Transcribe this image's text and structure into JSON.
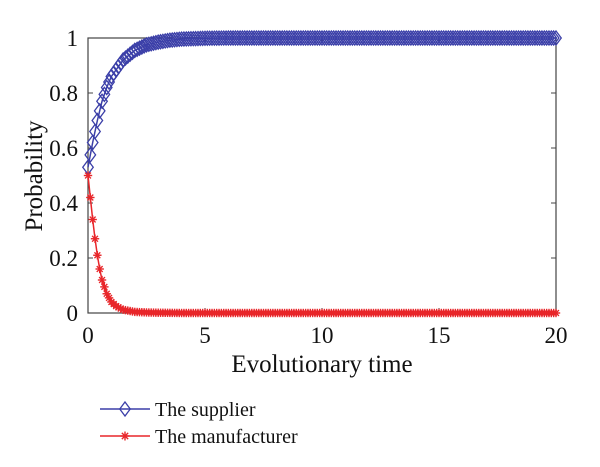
{
  "chart_data": {
    "type": "line",
    "title": "",
    "xlabel": "Evolutionary time",
    "ylabel": "Probability",
    "xlim": [
      0,
      20
    ],
    "ylim": [
      0,
      1
    ],
    "xticks": [
      0,
      5,
      10,
      15,
      20
    ],
    "xtick_labels": [
      "0",
      "5",
      "10",
      "15",
      "20"
    ],
    "yticks": [
      0,
      0.2,
      0.4,
      0.6,
      0.8,
      1
    ],
    "ytick_labels": [
      "0",
      "0.2",
      "0.4",
      "0.6",
      "0.8",
      "1"
    ],
    "grid": false,
    "legend_position": "bottom-left",
    "series": [
      {
        "name": "The supplier",
        "color": "#3b3fa8",
        "marker": "diamond",
        "x": [
          0,
          0.2,
          0.4,
          0.6,
          0.8,
          1,
          1.5,
          2,
          2.5,
          3,
          3.5,
          4,
          5,
          6,
          8,
          10,
          12,
          14,
          16,
          18,
          20
        ],
        "y": [
          0.53,
          0.62,
          0.7,
          0.77,
          0.82,
          0.86,
          0.92,
          0.955,
          0.975,
          0.985,
          0.992,
          0.996,
          0.999,
          1,
          1,
          1,
          1,
          1,
          1,
          1,
          1
        ]
      },
      {
        "name": "The manufacturer",
        "color": "#e8262a",
        "marker": "asterisk",
        "x": [
          0,
          0.1,
          0.2,
          0.3,
          0.4,
          0.5,
          0.6,
          0.8,
          1,
          1.2,
          1.5,
          2,
          2.5,
          3,
          4,
          5,
          6,
          8,
          10,
          12,
          14,
          16,
          18,
          20
        ],
        "y": [
          0.5,
          0.42,
          0.34,
          0.27,
          0.21,
          0.16,
          0.12,
          0.07,
          0.04,
          0.025,
          0.012,
          0.004,
          0.002,
          0.001,
          0,
          0,
          0,
          0,
          0,
          0,
          0,
          0,
          0,
          0
        ]
      }
    ]
  }
}
